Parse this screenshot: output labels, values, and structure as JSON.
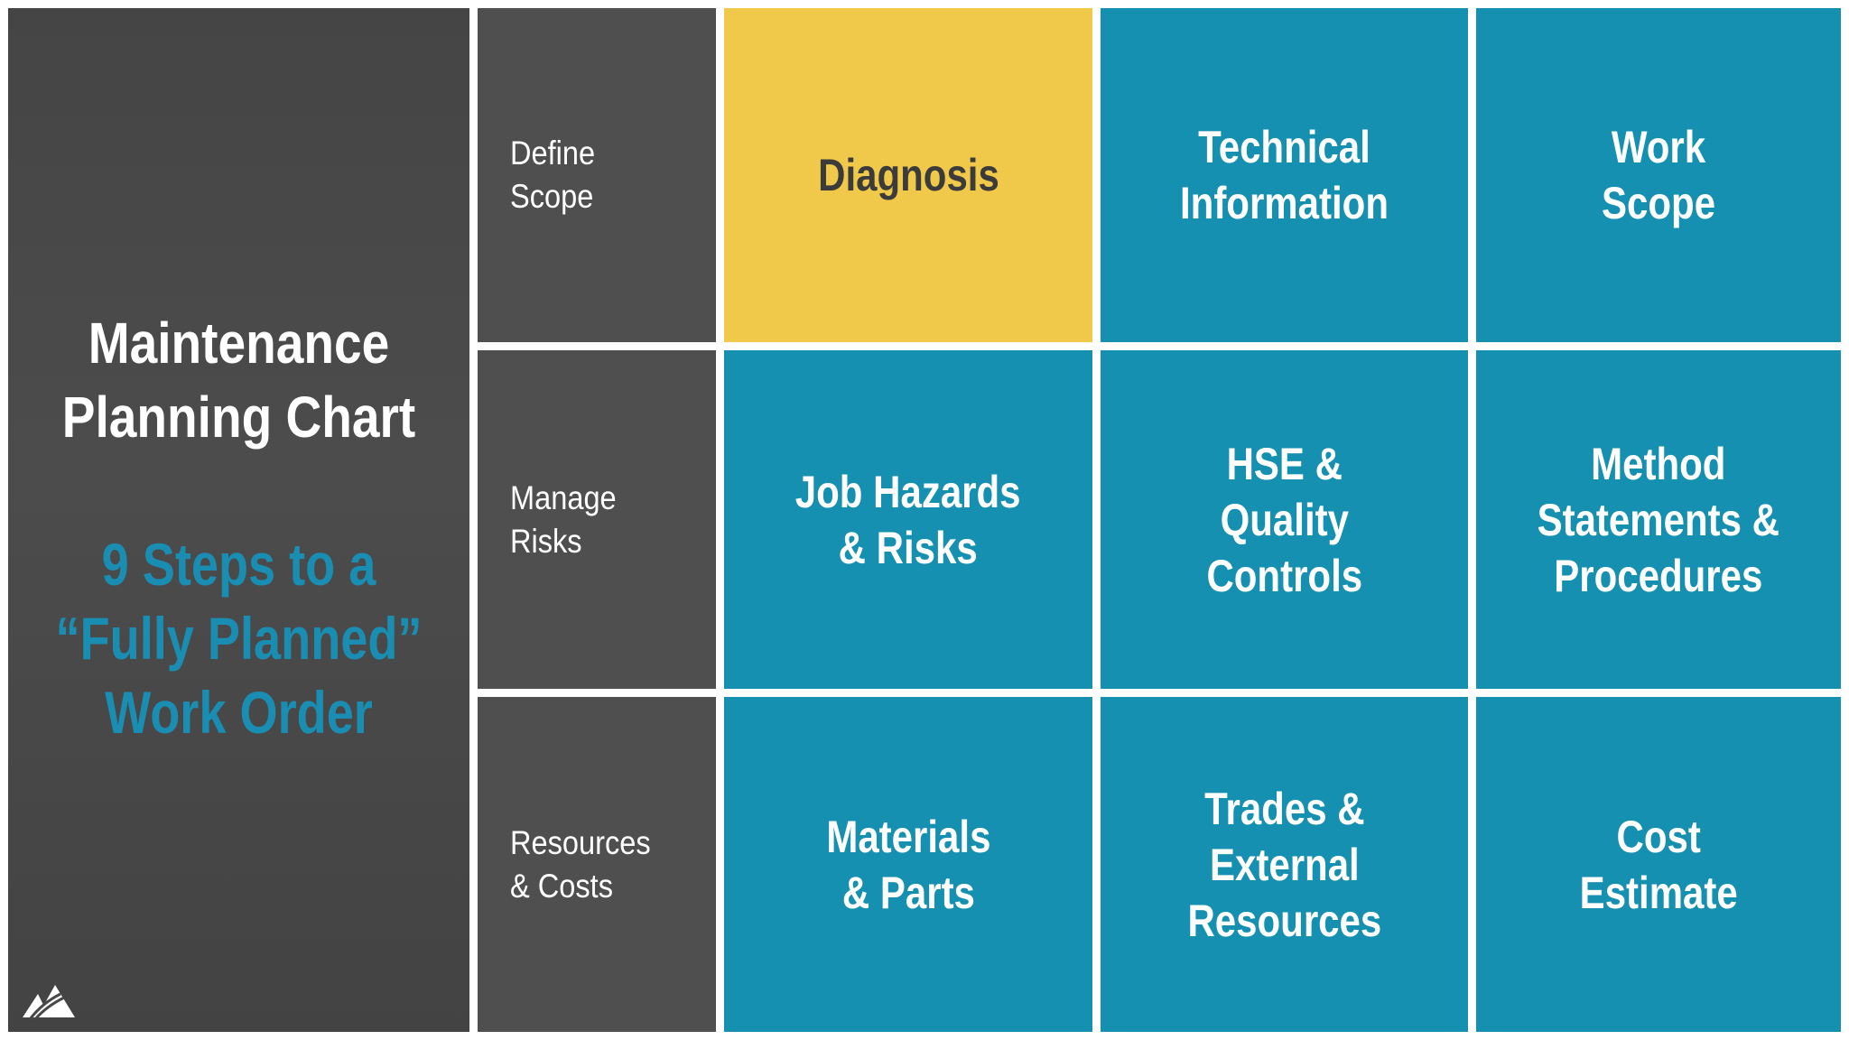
{
  "title_panel": {
    "title": "Maintenance Planning Chart",
    "title_lines": [
      "Maintenance",
      "Planning Chart"
    ],
    "subtitle_lines": [
      "9 Steps to a",
      "“Fully Planned”",
      "Work Order"
    ],
    "logo": "mountain-logo-icon"
  },
  "stages": [
    {
      "lines": [
        "Define",
        "Scope"
      ]
    },
    {
      "lines": [
        "Manage",
        "Risks"
      ]
    },
    {
      "lines": [
        "Resources",
        "& Costs"
      ]
    }
  ],
  "steps": [
    {
      "lines": [
        "Diagnosis"
      ],
      "color": "#f0c84a"
    },
    {
      "lines": [
        "Technical",
        "Information"
      ],
      "color": "#1590b0"
    },
    {
      "lines": [
        "Work",
        "Scope"
      ],
      "color": "#1590b0"
    },
    {
      "lines": [
        "Job Hazards",
        "& Risks"
      ],
      "color": "#1590b0"
    },
    {
      "lines": [
        "HSE &",
        "Quality",
        "Controls"
      ],
      "color": "#1590b0"
    },
    {
      "lines": [
        "Method",
        "Statements &",
        "Procedures"
      ],
      "color": "#1590b0"
    },
    {
      "lines": [
        "Materials",
        "& Parts"
      ],
      "color": "#1590b0"
    },
    {
      "lines": [
        "Trades &",
        "External",
        "Resources"
      ],
      "color": "#1590b0"
    },
    {
      "lines": [
        "Cost",
        "Estimate"
      ],
      "color": "#1590b0"
    }
  ],
  "colors": {
    "dark": "#4f4f4f",
    "highlight": "#f0c84a",
    "teal": "#1590b0",
    "subtitle": "#1a8db2"
  }
}
